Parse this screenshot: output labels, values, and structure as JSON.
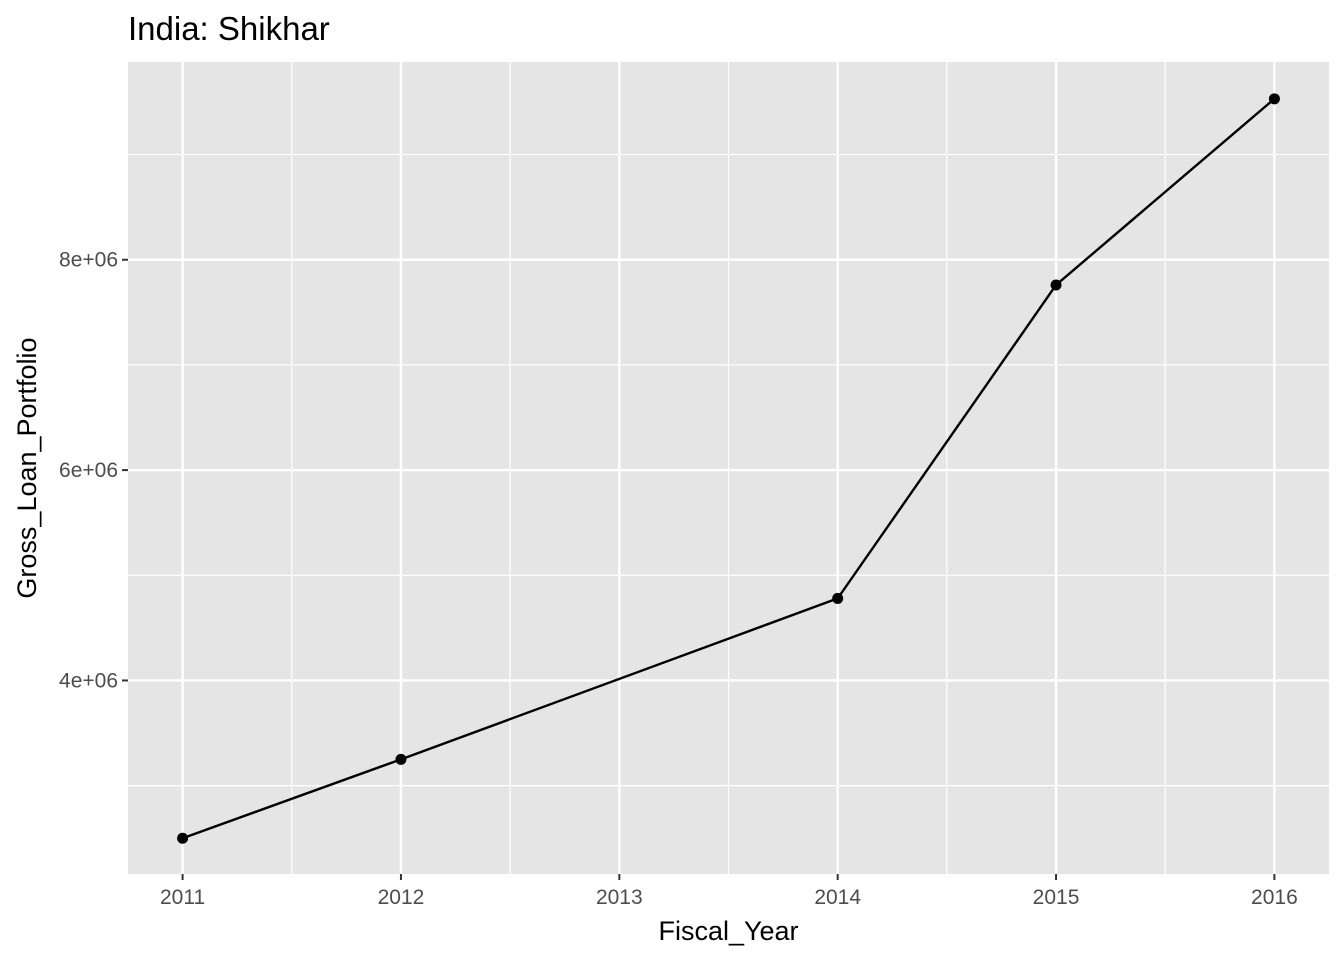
{
  "chart_data": {
    "type": "line",
    "title": "India:  Shikhar",
    "xlabel": "Fiscal_Year",
    "ylabel": "Gross_Loan_Portfolio",
    "x": [
      2011,
      2012,
      2014,
      2015,
      2016
    ],
    "values": [
      2500000,
      3250000,
      4780000,
      7760000,
      9530000
    ],
    "x_ticks": [
      "2011",
      "2012",
      "2013",
      "2014",
      "2015",
      "2016"
    ],
    "y_ticks": [
      "4e+06",
      "6e+06",
      "8e+06"
    ],
    "xlim": [
      2010.75,
      2016.25
    ],
    "ylim": [
      2160000,
      9880000
    ],
    "grid": true,
    "colors": {
      "panel": "#e5e5e5",
      "grid": "#ffffff",
      "series": "#000000",
      "tick_text": "#4d4d4d"
    }
  }
}
